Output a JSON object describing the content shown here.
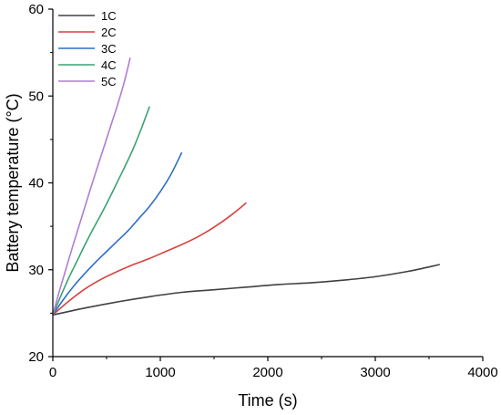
{
  "chart_data": {
    "type": "line",
    "title": "",
    "xlabel": "Time (s)",
    "ylabel": "Battery temperature (°C)",
    "xlim": [
      0,
      4000
    ],
    "ylim": [
      20,
      60
    ],
    "xticks": [
      0,
      1000,
      2000,
      3000,
      4000
    ],
    "yticks": [
      20,
      30,
      40,
      50,
      60
    ],
    "xtick_labels": [
      "0",
      "1000",
      "2000",
      "3000",
      "4000"
    ],
    "ytick_labels": [
      "20",
      "30",
      "40",
      "50",
      "60"
    ],
    "grid": false,
    "legend_position": "top-left",
    "series": [
      {
        "name": "1C",
        "color": "#404040",
        "x": [
          0,
          300,
          600,
          900,
          1200,
          1500,
          1800,
          2100,
          2400,
          2700,
          3000,
          3300,
          3600
        ],
        "y": [
          24.8,
          25.6,
          26.3,
          26.9,
          27.4,
          27.7,
          28.0,
          28.3,
          28.5,
          28.8,
          29.2,
          29.8,
          30.6
        ]
      },
      {
        "name": "2C",
        "color": "#d9413e",
        "x": [
          0,
          150,
          300,
          450,
          600,
          750,
          900,
          1050,
          1200,
          1350,
          1500,
          1650,
          1800
        ],
        "y": [
          24.8,
          26.4,
          27.8,
          28.9,
          29.8,
          30.6,
          31.3,
          32.1,
          32.9,
          33.8,
          34.9,
          36.2,
          37.7
        ]
      },
      {
        "name": "3C",
        "color": "#2e6fc4",
        "x": [
          0,
          100,
          200,
          300,
          400,
          500,
          600,
          700,
          800,
          900,
          1000,
          1100,
          1200
        ],
        "y": [
          24.8,
          26.6,
          28.2,
          29.6,
          30.9,
          32.1,
          33.3,
          34.5,
          35.9,
          37.3,
          39.0,
          41.0,
          43.5
        ]
      },
      {
        "name": "4C",
        "color": "#3aa271",
        "x": [
          0,
          75,
          150,
          225,
          300,
          375,
          450,
          525,
          600,
          675,
          750,
          825,
          900
        ],
        "y": [
          24.8,
          27.0,
          29.1,
          31.0,
          32.9,
          34.7,
          36.4,
          38.2,
          40.1,
          42.0,
          44.0,
          46.3,
          48.8
        ]
      },
      {
        "name": "5C",
        "color": "#b07cd6",
        "x": [
          0,
          60,
          120,
          180,
          240,
          300,
          360,
          420,
          480,
          540,
          600,
          660,
          720
        ],
        "y": [
          24.8,
          27.5,
          30.0,
          32.5,
          34.9,
          37.3,
          39.7,
          42.0,
          44.3,
          46.6,
          48.9,
          51.4,
          54.4
        ]
      }
    ]
  }
}
